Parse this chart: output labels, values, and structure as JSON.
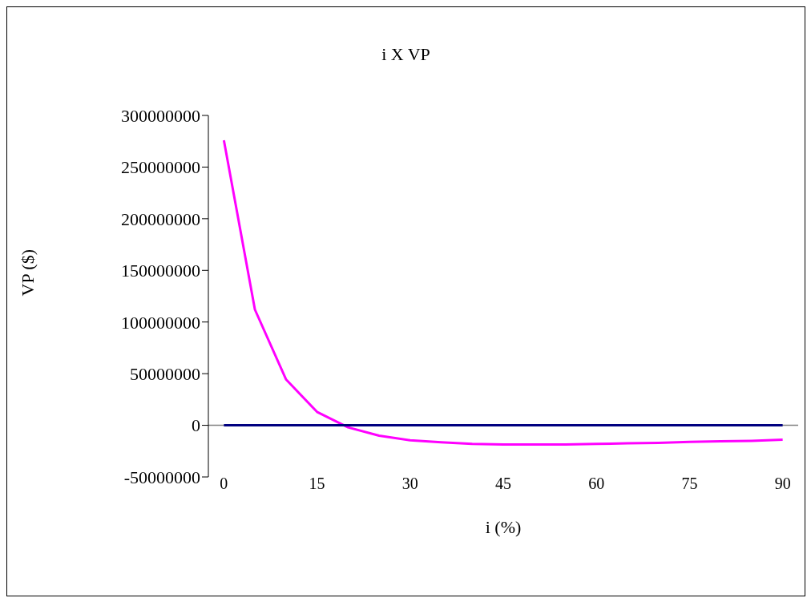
{
  "chart_data": {
    "type": "line",
    "title": "i X VP",
    "xlabel": "i (%)",
    "ylabel": "VP ($)",
    "x": [
      0,
      5,
      10,
      15,
      20,
      25,
      30,
      35,
      40,
      45,
      50,
      55,
      60,
      65,
      70,
      75,
      80,
      85,
      90
    ],
    "series": [
      {
        "color": "#ff00ff",
        "values": [
          276000000,
          112000000,
          44500000,
          13000000,
          -2000000,
          -10000000,
          -14500000,
          -16500000,
          -18000000,
          -18500000,
          -18500000,
          -18500000,
          -18000000,
          -17500000,
          -17000000,
          -16000000,
          -15500000,
          -15000000,
          -14000000
        ]
      },
      {
        "color": "#000080",
        "values": [
          0,
          0,
          0,
          0,
          0,
          0,
          0,
          0,
          0,
          0,
          0,
          0,
          0,
          0,
          0,
          0,
          0,
          0,
          0
        ]
      }
    ],
    "xlim": [
      -2.5,
      92.5
    ],
    "xticks": [
      0,
      15,
      30,
      45,
      60,
      75,
      90
    ],
    "ylim": [
      -50000000,
      300000000
    ],
    "yticks": [
      -50000000,
      0,
      50000000,
      100000000,
      150000000,
      200000000,
      250000000,
      300000000
    ],
    "marker": "none",
    "line_style": "solid"
  }
}
